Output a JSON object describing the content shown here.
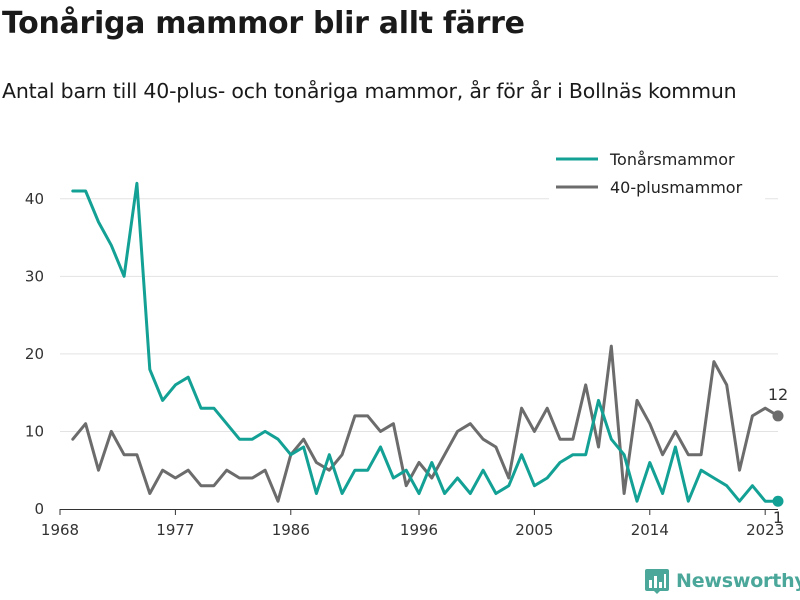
{
  "header": {
    "title": "Tonåriga mammor blir allt färre",
    "subtitle": "Antal barn till 40-plus- och tonåriga mammor, år för år i Bollnäs kommun"
  },
  "brand": {
    "name": "Newsworthy",
    "icon": "newsworthy-logo-icon",
    "color": "#4aa79a"
  },
  "chart_data": {
    "type": "line",
    "xlim": [
      1968,
      2024
    ],
    "ylim": [
      0,
      45
    ],
    "x_ticks": [
      1968,
      1977,
      1986,
      1996,
      2005,
      2014,
      2023
    ],
    "y_ticks": [
      0,
      10,
      20,
      30,
      40
    ],
    "grid": "horizontal",
    "legend_position": "top-right",
    "x": [
      1969,
      1970,
      1971,
      1972,
      1973,
      1974,
      1975,
      1976,
      1977,
      1978,
      1979,
      1980,
      1981,
      1982,
      1983,
      1984,
      1985,
      1986,
      1987,
      1988,
      1989,
      1990,
      1991,
      1992,
      1993,
      1994,
      1995,
      1996,
      1997,
      1998,
      1999,
      2000,
      2001,
      2002,
      2003,
      2004,
      2005,
      2006,
      2007,
      2008,
      2009,
      2010,
      2011,
      2012,
      2013,
      2014,
      2015,
      2016,
      2017,
      2018,
      2019,
      2020,
      2021,
      2022,
      2023,
      2024
    ],
    "series": [
      {
        "name": "Tonårsmammor",
        "color": "#14a195",
        "values": [
          41,
          41,
          37,
          34,
          30,
          42,
          18,
          14,
          16,
          17,
          13,
          13,
          11,
          9,
          9,
          10,
          9,
          7,
          8,
          2,
          7,
          2,
          5,
          5,
          8,
          4,
          5,
          2,
          6,
          2,
          4,
          2,
          5,
          2,
          3,
          7,
          3,
          4,
          6,
          7,
          7,
          14,
          9,
          7,
          1,
          6,
          2,
          8,
          1,
          5,
          4,
          3,
          1,
          3,
          1,
          1
        ],
        "end_label": "1"
      },
      {
        "name": "40-plusmammor",
        "color": "#6c6c6c",
        "values": [
          9,
          11,
          5,
          10,
          7,
          7,
          2,
          5,
          4,
          5,
          3,
          3,
          5,
          4,
          4,
          5,
          1,
          7,
          9,
          6,
          5,
          7,
          12,
          12,
          10,
          11,
          3,
          6,
          4,
          7,
          10,
          11,
          9,
          8,
          4,
          13,
          10,
          13,
          9,
          9,
          16,
          8,
          21,
          2,
          14,
          11,
          7,
          10,
          7,
          7,
          19,
          16,
          5,
          12,
          13,
          12
        ],
        "end_label": "12"
      }
    ]
  }
}
